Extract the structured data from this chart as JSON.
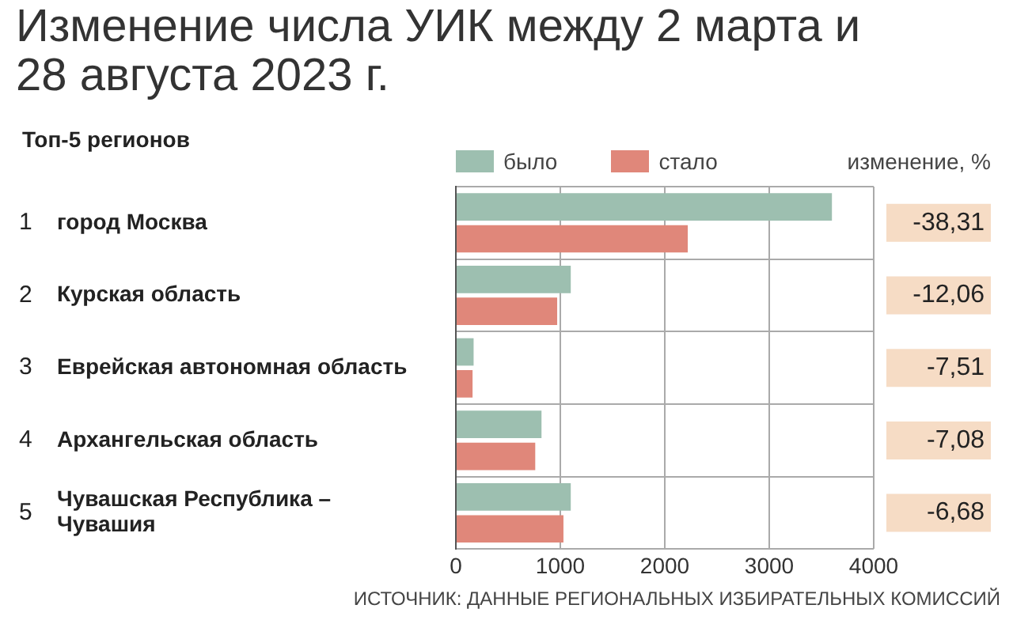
{
  "chart_data": {
    "type": "bar",
    "orientation": "horizontal",
    "title": "Изменение числа УИК между 2 марта и 28 августа 2023 г.",
    "subtitle": "Топ-5 регионов",
    "categories": [
      "1 город Москва",
      "2 Курская область",
      "3 Еврейская автономная область",
      "4 Архангельская область",
      "5 Чувашская Республика – Чувашия"
    ],
    "series": [
      {
        "name": "было",
        "color": "#9dbfb0",
        "values": [
          3600,
          1100,
          170,
          820,
          1100
        ]
      },
      {
        "name": "стало",
        "color": "#e0877a",
        "values": [
          2220,
          970,
          160,
          760,
          1030
        ]
      }
    ],
    "xlim": [
      0,
      4000
    ],
    "xticks": [
      0,
      1000,
      2000,
      3000,
      4000
    ],
    "grid": true,
    "legend": "top",
    "annotations": [
      "изменение, %",
      "-38,31",
      "-12,06",
      "-7,51",
      "-7,08",
      "-6,68",
      "ИСТОЧНИК: ДАННЫЕ РЕГИОНАЛЬНЫХ ИЗБИРАТЕЛЬНЫХ КОМИССИЙ"
    ]
  }
}
